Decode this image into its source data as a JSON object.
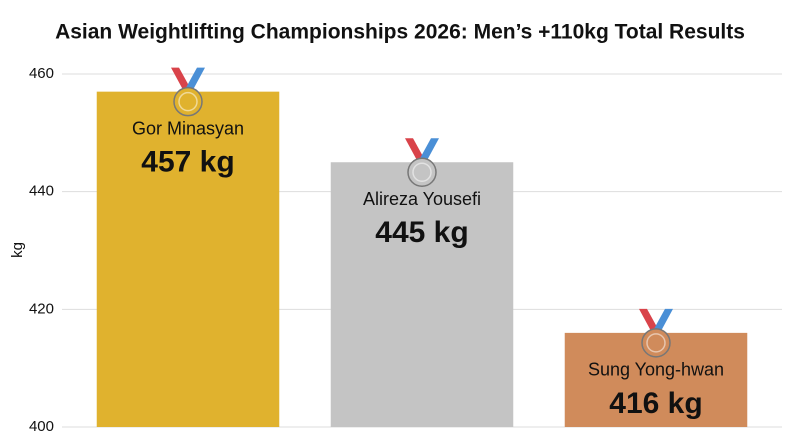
{
  "chart_data": {
    "type": "bar",
    "title": "Asian Weightlifting Championships 2026: Men’s +110kg Total Results",
    "y_label": "kg",
    "categories": [
      "Gor Minasyan",
      "Alireza Yousefi",
      "Sung Yong-hwan"
    ],
    "values": [
      457,
      445,
      416
    ],
    "value_labels": [
      "457 kg",
      "445 kg",
      "416 kg"
    ],
    "colors": [
      "#e0b22e",
      "#c4c4c4",
      "#d08b5b"
    ],
    "ylim": [
      400,
      460
    ],
    "yticks": [
      400,
      420,
      440,
      460
    ],
    "grid": true
  }
}
